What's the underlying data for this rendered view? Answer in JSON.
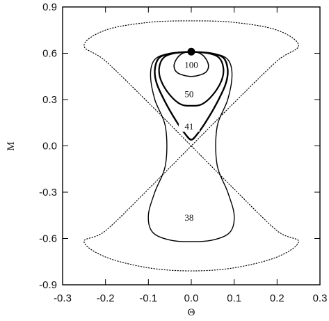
{
  "chart_data": {
    "type": "line",
    "title": "",
    "xlabel": "Θ",
    "ylabel": "M",
    "xlim": [
      -0.3,
      0.3
    ],
    "ylim": [
      -0.9,
      0.9
    ],
    "x_ticks": [
      "-0.3",
      "-0.2",
      "-0.1",
      "0.0",
      "0.1",
      "0.2",
      "0.3"
    ],
    "y_ticks": [
      "0.9",
      "0.6",
      "0.3",
      "0.0",
      "-0.3",
      "-0.6",
      "-0.9"
    ],
    "grid": false,
    "legend": "none",
    "separatrix": {
      "style": "dotted",
      "x": [
        0.0,
        -0.1,
        -0.2,
        -0.25,
        -0.2,
        -0.1,
        0.0,
        0.1,
        0.2,
        0.25,
        0.2,
        0.1,
        0.0,
        -0.1,
        -0.2,
        -0.25,
        -0.2,
        -0.1,
        0.0,
        0.1,
        0.2,
        0.25,
        0.2,
        0.1,
        0.0
      ],
      "y": [
        0.0,
        0.28,
        0.55,
        0.65,
        0.75,
        0.8,
        0.81,
        0.8,
        0.75,
        0.65,
        0.55,
        0.28,
        0.0,
        -0.28,
        -0.55,
        -0.62,
        -0.72,
        -0.79,
        -0.81,
        -0.79,
        -0.72,
        -0.62,
        -0.55,
        -0.28,
        0.0
      ]
    },
    "series": [
      {
        "label": "100",
        "x": [
          0.0,
          -0.02,
          -0.035,
          -0.04,
          -0.03,
          0.0,
          0.03,
          0.04,
          0.035,
          0.02,
          0.0
        ],
        "y": [
          0.61,
          0.6,
          0.56,
          0.51,
          0.47,
          0.45,
          0.47,
          0.51,
          0.56,
          0.6,
          0.61
        ],
        "label_pos": [
          0.0,
          0.51
        ]
      },
      {
        "label": "50",
        "x": [
          0.0,
          -0.04,
          -0.065,
          -0.075,
          -0.07,
          -0.05,
          -0.025,
          0.0,
          0.025,
          0.05,
          0.07,
          0.075,
          0.065,
          0.04,
          0.0
        ],
        "y": [
          0.61,
          0.6,
          0.57,
          0.5,
          0.42,
          0.33,
          0.27,
          0.26,
          0.27,
          0.33,
          0.42,
          0.5,
          0.57,
          0.6,
          0.61
        ],
        "label_pos": [
          -0.005,
          0.32
        ]
      },
      {
        "label": "41",
        "x": [
          0.0,
          -0.045,
          -0.075,
          -0.085,
          -0.08,
          -0.06,
          -0.035,
          -0.015,
          0.0,
          0.015,
          0.035,
          0.06,
          0.08,
          0.085,
          0.075,
          0.045,
          0.0
        ],
        "y": [
          0.61,
          0.6,
          0.57,
          0.49,
          0.4,
          0.28,
          0.16,
          0.08,
          0.04,
          0.08,
          0.16,
          0.28,
          0.4,
          0.49,
          0.57,
          0.6,
          0.61
        ],
        "label_pos": [
          -0.005,
          0.11
        ]
      },
      {
        "label": "38",
        "x": [
          0.0,
          -0.05,
          -0.085,
          -0.095,
          -0.085,
          -0.06,
          -0.06,
          -0.085,
          -0.1,
          -0.09,
          -0.05,
          0.0,
          0.05,
          0.09,
          0.1,
          0.085,
          0.06,
          0.06,
          0.085,
          0.095,
          0.085,
          0.05,
          0.0
        ],
        "y": [
          0.61,
          0.6,
          0.56,
          0.46,
          0.3,
          0.12,
          -0.12,
          -0.3,
          -0.45,
          -0.56,
          -0.61,
          -0.62,
          -0.61,
          -0.56,
          -0.45,
          -0.3,
          -0.12,
          0.12,
          0.3,
          0.46,
          0.56,
          0.6,
          0.61
        ],
        "label_pos": [
          -0.005,
          -0.48
        ]
      }
    ],
    "start_point": {
      "x": 0.0,
      "y": 0.61
    }
  }
}
